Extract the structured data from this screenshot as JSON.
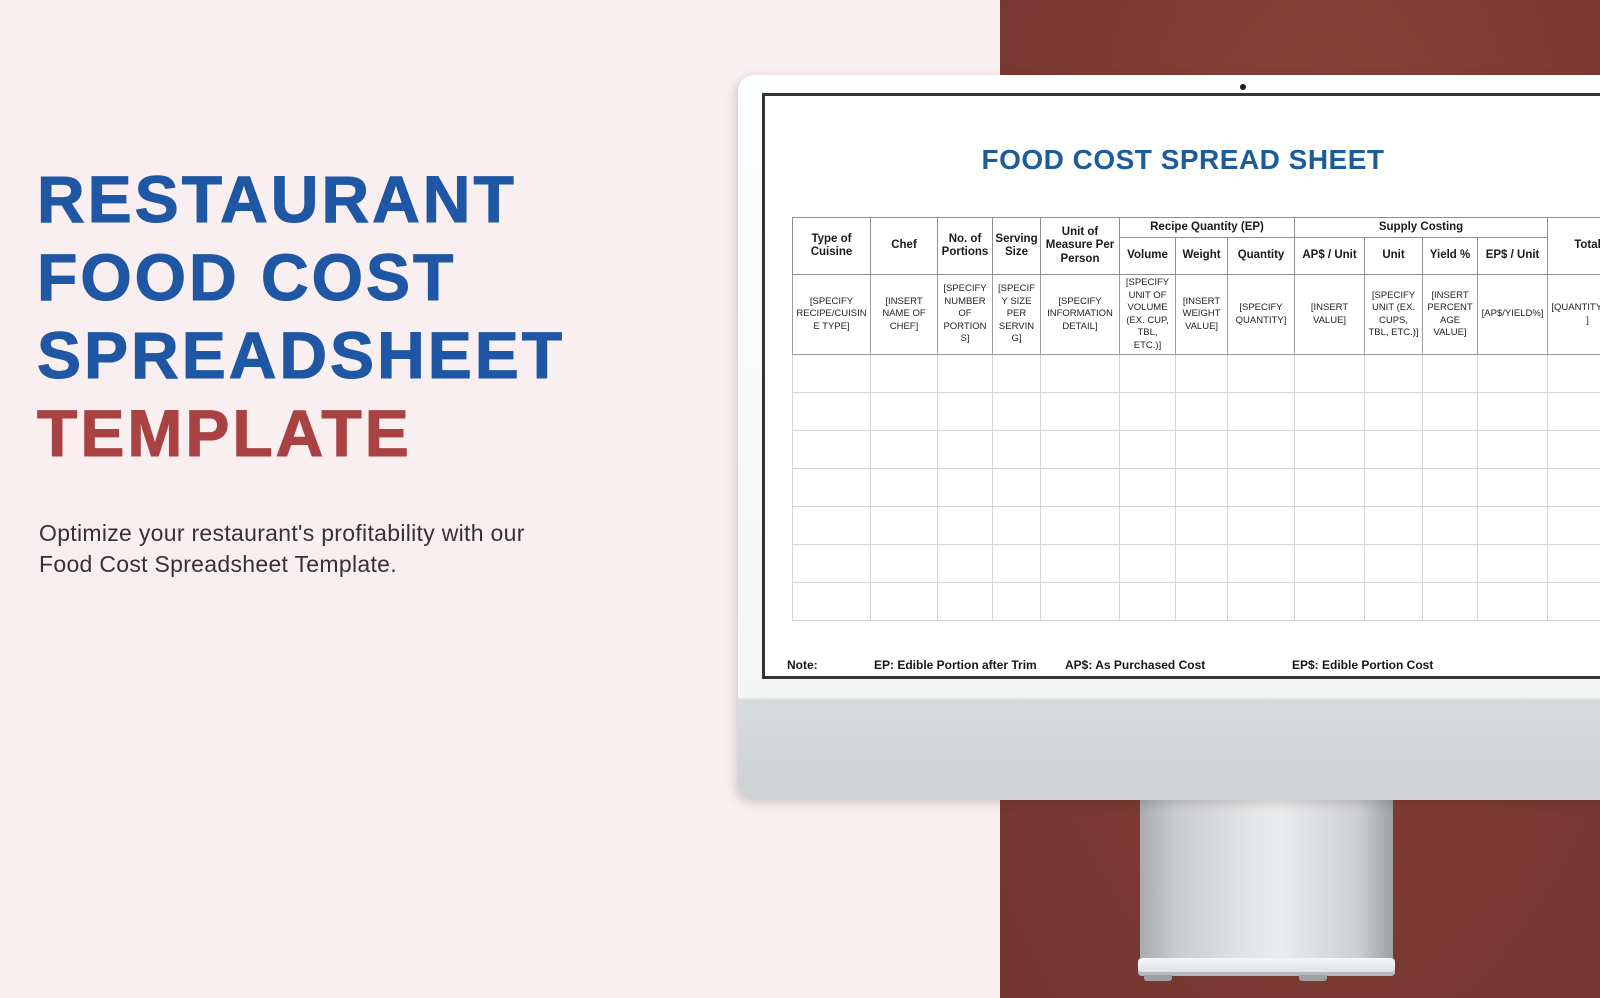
{
  "colors": {
    "background_pink": "#f9eff1",
    "panel_maroon": "#7d3b33",
    "headline_blue": "#1f57a4",
    "headline_red": "#a94343",
    "sheet_title_blue": "#1d5c99"
  },
  "hero": {
    "line1": "RESTAURANT",
    "line2": "FOOD COST",
    "line3": "SPREADSHEET",
    "line4": "TEMPLATE",
    "subtitle": "Optimize your restaurant's profitability with our Food Cost Spreadsheet Template."
  },
  "spreadsheet": {
    "title": "FOOD COST SPREAD SHEET",
    "groups": [
      {
        "label": "Recipe Quantity (EP)",
        "span": 3
      },
      {
        "label": "Supply Costing",
        "span": 4
      }
    ],
    "columns": [
      {
        "label": "Type of Cuisine",
        "placeholder": "[SPECIFY RECIPE/CUISINE TYPE]"
      },
      {
        "label": "Chef",
        "placeholder": "[INSERT NAME OF CHEF]"
      },
      {
        "label": "No. of Portions",
        "placeholder": "[SPECIFY NUMBER OF PORTIONS]"
      },
      {
        "label": "Serving Size",
        "placeholder": "[SPECIFY SIZE PER SERVING]"
      },
      {
        "label": "Unit of Measure Per Person",
        "placeholder": "[SPECIFY INFORMATION DETAIL]"
      },
      {
        "label": "Volume",
        "placeholder": "[SPECIFY UNIT OF VOLUME (EX. CUP, TBL, ETC.)]"
      },
      {
        "label": "Weight",
        "placeholder": "[INSERT WEIGHT VALUE]"
      },
      {
        "label": "Quantity",
        "placeholder": "[SPECIFY QUANTITY]"
      },
      {
        "label": "AP$ / Unit",
        "placeholder": "[INSERT VALUE]"
      },
      {
        "label": "Unit",
        "placeholder": "[SPECIFY UNIT (EX. CUPS, TBL, ETC.)]"
      },
      {
        "label": "Yield %",
        "placeholder": "[INSERT PERCENTAGE VALUE]"
      },
      {
        "label": "EP$ / Unit",
        "placeholder": "[AP$/YIELD%]"
      },
      {
        "label": "Total",
        "placeholder": "[QUANTITY*EP$]"
      }
    ],
    "empty_rows": 7,
    "note_label": "Note:",
    "notes": [
      "EP: Edible Portion after Trim",
      "AP$: As Purchased Cost",
      "EP$: Edible Portion Cost"
    ]
  }
}
